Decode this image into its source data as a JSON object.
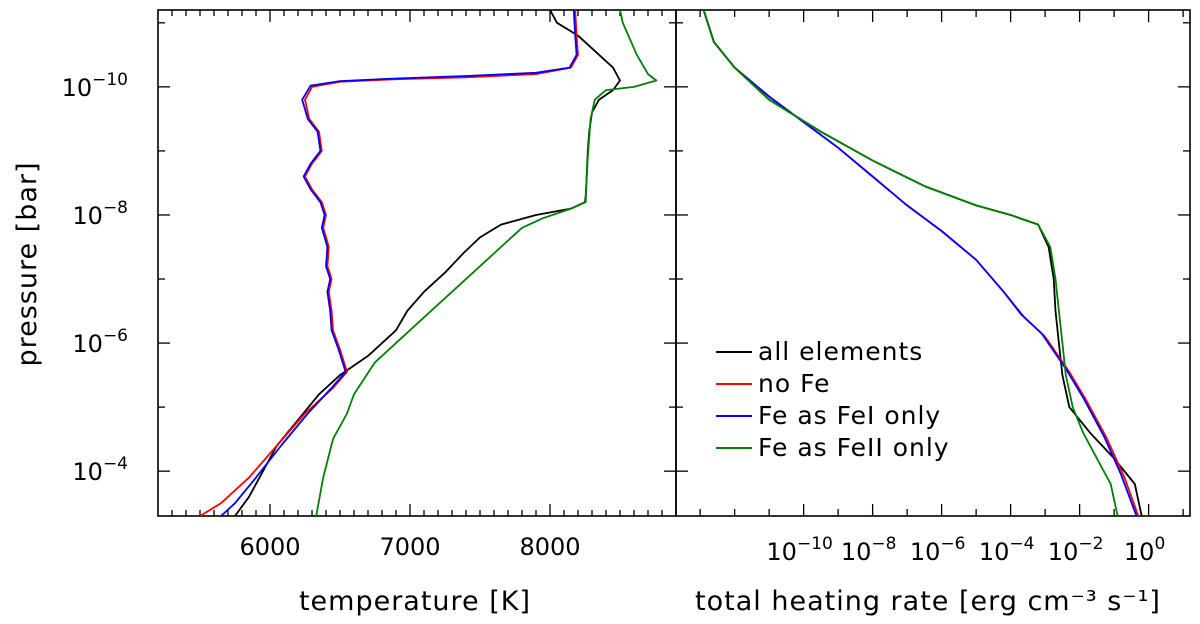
{
  "chart_data": [
    {
      "type": "line",
      "xlabel": "temperature [K]",
      "ylabel": "pressure [bar]",
      "xlim": [
        5200,
        8900
      ],
      "ylim_log10": [
        -11.2,
        -3.3
      ],
      "y_scale": "log",
      "y_inverted": true,
      "x_ticks": [
        6000,
        7000,
        8000
      ],
      "x_tick_labels": [
        "6000",
        "7000",
        "8000"
      ],
      "y_ticks_log10": [
        -10,
        -8,
        -6,
        -4
      ],
      "y_tick_labels": [
        {
          "base": "10",
          "exp": "−10"
        },
        {
          "base": "10",
          "exp": "−8"
        },
        {
          "base": "10",
          "exp": "−6"
        },
        {
          "base": "10",
          "exp": "−4"
        }
      ],
      "series": [
        {
          "name": "all elements",
          "color": "#000000",
          "points": [
            [
              8000,
              -11.2
            ],
            [
              8050,
              -11.0
            ],
            [
              8200,
              -10.8
            ],
            [
              8350,
              -10.5
            ],
            [
              8450,
              -10.3
            ],
            [
              8500,
              -10.1
            ],
            [
              8450,
              -9.95
            ],
            [
              8350,
              -9.8
            ],
            [
              8300,
              -9.6
            ],
            [
              8280,
              -9.3
            ],
            [
              8270,
              -9.0
            ],
            [
              8260,
              -8.5
            ],
            [
              8255,
              -8.3
            ],
            [
              8250,
              -8.2
            ],
            [
              8150,
              -8.1
            ],
            [
              7900,
              -8.0
            ],
            [
              7650,
              -7.85
            ],
            [
              7500,
              -7.65
            ],
            [
              7380,
              -7.4
            ],
            [
              7250,
              -7.1
            ],
            [
              7100,
              -6.8
            ],
            [
              6980,
              -6.5
            ],
            [
              6900,
              -6.2
            ],
            [
              6700,
              -5.8
            ],
            [
              6500,
              -5.5
            ],
            [
              6350,
              -5.2
            ],
            [
              6200,
              -4.8
            ],
            [
              6050,
              -4.4
            ],
            [
              5950,
              -4.0
            ],
            [
              5850,
              -3.6
            ],
            [
              5750,
              -3.3
            ]
          ]
        },
        {
          "name": "no Fe",
          "color": "#ff0000",
          "points": [
            [
              8180,
              -11.2
            ],
            [
              8190,
              -10.8
            ],
            [
              8200,
              -10.5
            ],
            [
              8150,
              -10.3
            ],
            [
              7900,
              -10.2
            ],
            [
              7400,
              -10.15
            ],
            [
              6900,
              -10.12
            ],
            [
              6500,
              -10.08
            ],
            [
              6300,
              -10.0
            ],
            [
              6250,
              -9.8
            ],
            [
              6280,
              -9.5
            ],
            [
              6350,
              -9.3
            ],
            [
              6370,
              -9.0
            ],
            [
              6300,
              -8.8
            ],
            [
              6250,
              -8.6
            ],
            [
              6300,
              -8.4
            ],
            [
              6370,
              -8.2
            ],
            [
              6400,
              -8.0
            ],
            [
              6380,
              -7.8
            ],
            [
              6420,
              -7.5
            ],
            [
              6410,
              -7.2
            ],
            [
              6440,
              -7.0
            ],
            [
              6420,
              -6.8
            ],
            [
              6440,
              -6.5
            ],
            [
              6450,
              -6.2
            ],
            [
              6500,
              -5.9
            ],
            [
              6550,
              -5.55
            ],
            [
              6450,
              -5.3
            ],
            [
              6250,
              -4.9
            ],
            [
              6050,
              -4.4
            ],
            [
              5850,
              -3.9
            ],
            [
              5650,
              -3.5
            ],
            [
              5500,
              -3.3
            ]
          ]
        },
        {
          "name": "Fe as FeI only",
          "color": "#0000ff",
          "points": [
            [
              8170,
              -11.2
            ],
            [
              8180,
              -10.8
            ],
            [
              8190,
              -10.5
            ],
            [
              8140,
              -10.3
            ],
            [
              7900,
              -10.22
            ],
            [
              7400,
              -10.17
            ],
            [
              6900,
              -10.13
            ],
            [
              6500,
              -10.09
            ],
            [
              6290,
              -10.02
            ],
            [
              6230,
              -9.8
            ],
            [
              6270,
              -9.5
            ],
            [
              6340,
              -9.3
            ],
            [
              6360,
              -9.0
            ],
            [
              6290,
              -8.8
            ],
            [
              6240,
              -8.6
            ],
            [
              6290,
              -8.4
            ],
            [
              6360,
              -8.2
            ],
            [
              6390,
              -8.0
            ],
            [
              6370,
              -7.8
            ],
            [
              6410,
              -7.5
            ],
            [
              6400,
              -7.2
            ],
            [
              6430,
              -7.0
            ],
            [
              6410,
              -6.8
            ],
            [
              6430,
              -6.5
            ],
            [
              6440,
              -6.2
            ],
            [
              6490,
              -5.9
            ],
            [
              6540,
              -5.55
            ],
            [
              6440,
              -5.3
            ],
            [
              6270,
              -4.9
            ],
            [
              6080,
              -4.4
            ],
            [
              5900,
              -3.9
            ],
            [
              5750,
              -3.5
            ],
            [
              5650,
              -3.3
            ]
          ]
        },
        {
          "name": "Fe as FeII only",
          "color": "#008000",
          "points": [
            [
              8500,
              -11.2
            ],
            [
              8520,
              -11.0
            ],
            [
              8560,
              -10.8
            ],
            [
              8620,
              -10.5
            ],
            [
              8700,
              -10.2
            ],
            [
              8760,
              -10.1
            ],
            [
              8600,
              -10.0
            ],
            [
              8400,
              -9.95
            ],
            [
              8320,
              -9.8
            ],
            [
              8290,
              -9.5
            ],
            [
              8280,
              -9.2
            ],
            [
              8270,
              -8.9
            ],
            [
              8260,
              -8.5
            ],
            [
              8255,
              -8.2
            ],
            [
              8150,
              -8.1
            ],
            [
              7950,
              -7.95
            ],
            [
              7800,
              -7.8
            ],
            [
              7650,
              -7.5
            ],
            [
              7500,
              -7.2
            ],
            [
              7350,
              -6.9
            ],
            [
              7200,
              -6.6
            ],
            [
              7050,
              -6.3
            ],
            [
              6900,
              -6.0
            ],
            [
              6750,
              -5.7
            ],
            [
              6600,
              -5.2
            ],
            [
              6550,
              -4.9
            ],
            [
              6450,
              -4.5
            ],
            [
              6380,
              -3.9
            ],
            [
              6330,
              -3.3
            ]
          ]
        }
      ]
    },
    {
      "type": "line",
      "xlabel": "total heating rate [erg cm⁻³ s⁻¹]",
      "ylabel": "",
      "x_scale": "log",
      "xlim_log10": [
        -13.7,
        1.2
      ],
      "ylim_log10": [
        -11.2,
        -3.3
      ],
      "y_inverted": true,
      "x_ticks_log10": [
        -10,
        -8,
        -6,
        -4,
        -2,
        0
      ],
      "x_tick_labels": [
        {
          "base": "10",
          "exp": "−10"
        },
        {
          "base": "10",
          "exp": "−8"
        },
        {
          "base": "10",
          "exp": "−6"
        },
        {
          "base": "10",
          "exp": "−4"
        },
        {
          "base": "10",
          "exp": "−2"
        },
        {
          "base": "10",
          "exp": "0"
        }
      ],
      "legend": {
        "position": "right",
        "entries": [
          {
            "label": "all elements",
            "color": "#000000"
          },
          {
            "label": "no Fe",
            "color": "#ff0000"
          },
          {
            "label": "Fe as FeI only",
            "color": "#0000ff"
          },
          {
            "label": "Fe as FeII only",
            "color": "#008000"
          }
        ]
      },
      "series": [
        {
          "name": "all elements",
          "color": "#000000",
          "points": [
            [
              -12.9,
              -11.2
            ],
            [
              -12.6,
              -10.7
            ],
            [
              -12.0,
              -10.3
            ],
            [
              -11.0,
              -9.8
            ],
            [
              -9.5,
              -9.3
            ],
            [
              -8.0,
              -8.85
            ],
            [
              -6.5,
              -8.45
            ],
            [
              -5.0,
              -8.15
            ],
            [
              -4.0,
              -8.0
            ],
            [
              -3.2,
              -7.85
            ],
            [
              -2.9,
              -7.5
            ],
            [
              -2.75,
              -7.0
            ],
            [
              -2.7,
              -6.5
            ],
            [
              -2.6,
              -6.0
            ],
            [
              -2.5,
              -5.5
            ],
            [
              -2.3,
              -5.0
            ],
            [
              -1.7,
              -4.6
            ],
            [
              -1.0,
              -4.2
            ],
            [
              -0.4,
              -3.8
            ],
            [
              -0.2,
              -3.3
            ]
          ]
        },
        {
          "name": "no Fe",
          "color": "#ff0000",
          "points": [
            [
              -12.9,
              -11.2
            ],
            [
              -12.6,
              -10.7
            ],
            [
              -12.0,
              -10.3
            ],
            [
              -11.0,
              -9.85
            ],
            [
              -10.0,
              -9.45
            ],
            [
              -9.0,
              -9.05
            ],
            [
              -8.0,
              -8.6
            ],
            [
              -7.0,
              -8.15
            ],
            [
              -6.0,
              -7.75
            ],
            [
              -5.0,
              -7.3
            ],
            [
              -4.2,
              -6.8
            ],
            [
              -3.6,
              -6.4
            ],
            [
              -3.0,
              -6.1
            ],
            [
              -2.3,
              -5.55
            ],
            [
              -1.8,
              -5.1
            ],
            [
              -1.2,
              -4.5
            ],
            [
              -0.7,
              -3.9
            ],
            [
              -0.3,
              -3.3
            ]
          ]
        },
        {
          "name": "Fe as FeI only",
          "color": "#0000ff",
          "points": [
            [
              -12.9,
              -11.2
            ],
            [
              -12.6,
              -10.7
            ],
            [
              -12.0,
              -10.3
            ],
            [
              -11.0,
              -9.85
            ],
            [
              -10.0,
              -9.45
            ],
            [
              -9.0,
              -9.05
            ],
            [
              -8.0,
              -8.6
            ],
            [
              -7.0,
              -8.15
            ],
            [
              -6.0,
              -7.75
            ],
            [
              -5.0,
              -7.3
            ],
            [
              -4.2,
              -6.8
            ],
            [
              -3.7,
              -6.45
            ],
            [
              -3.1,
              -6.15
            ],
            [
              -2.4,
              -5.6
            ],
            [
              -1.9,
              -5.15
            ],
            [
              -1.3,
              -4.55
            ],
            [
              -0.8,
              -3.95
            ],
            [
              -0.35,
              -3.3
            ]
          ]
        },
        {
          "name": "Fe as FeII only",
          "color": "#008000",
          "points": [
            [
              -12.9,
              -11.2
            ],
            [
              -12.6,
              -10.7
            ],
            [
              -12.0,
              -10.3
            ],
            [
              -11.0,
              -9.8
            ],
            [
              -9.5,
              -9.3
            ],
            [
              -8.0,
              -8.85
            ],
            [
              -6.5,
              -8.45
            ],
            [
              -5.0,
              -8.15
            ],
            [
              -4.0,
              -8.0
            ],
            [
              -3.2,
              -7.85
            ],
            [
              -2.85,
              -7.5
            ],
            [
              -2.7,
              -7.0
            ],
            [
              -2.6,
              -6.5
            ],
            [
              -2.5,
              -6.0
            ],
            [
              -2.4,
              -5.5
            ],
            [
              -2.2,
              -5.0
            ],
            [
              -1.9,
              -4.6
            ],
            [
              -1.5,
              -4.2
            ],
            [
              -1.1,
              -3.8
            ],
            [
              -0.9,
              -3.3
            ]
          ]
        }
      ]
    }
  ]
}
